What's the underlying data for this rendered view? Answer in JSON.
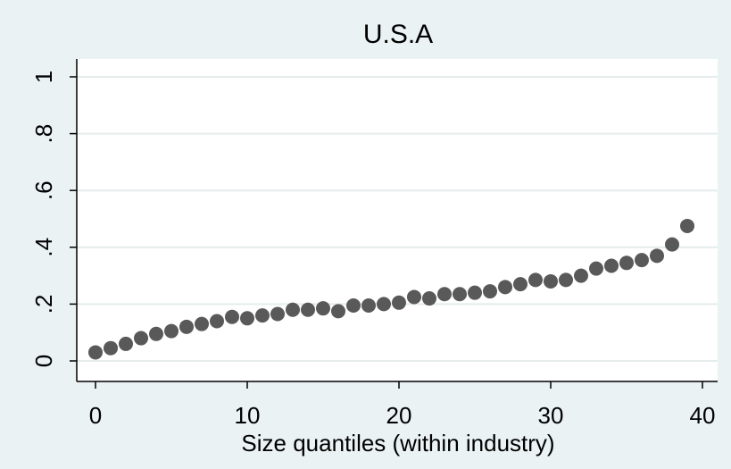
{
  "chart_data": {
    "type": "scatter",
    "title": "U.S.A",
    "xlabel": "Size quantiles (within industry)",
    "ylabel": "",
    "xlim": [
      0,
      40
    ],
    "ylim": [
      0,
      1
    ],
    "x_ticks": [
      "0",
      "10",
      "20",
      "30",
      "40"
    ],
    "y_ticks": [
      "0",
      ".2",
      ".4",
      ".6",
      ".8",
      "1"
    ],
    "grid": true,
    "legend": "none",
    "x": [
      0,
      1,
      2,
      3,
      4,
      5,
      6,
      7,
      8,
      9,
      10,
      11,
      12,
      13,
      14,
      15,
      16,
      17,
      18,
      19,
      20,
      21,
      22,
      23,
      24,
      25,
      26,
      27,
      28,
      29,
      30,
      31,
      32,
      33,
      34,
      35,
      36,
      37,
      38,
      39
    ],
    "y": [
      0.03,
      0.045,
      0.06,
      0.08,
      0.095,
      0.105,
      0.12,
      0.13,
      0.14,
      0.155,
      0.15,
      0.16,
      0.165,
      0.18,
      0.18,
      0.185,
      0.175,
      0.195,
      0.195,
      0.2,
      0.205,
      0.225,
      0.22,
      0.235,
      0.235,
      0.24,
      0.245,
      0.26,
      0.27,
      0.285,
      0.28,
      0.285,
      0.3,
      0.325,
      0.335,
      0.345,
      0.355,
      0.37,
      0.41,
      0.475
    ],
    "colors": {
      "marker": "#595959",
      "plot_bg": "#ffffff",
      "outer_bg": "#eaf2f3",
      "grid": "#e4ecec",
      "axis": "#000000"
    }
  }
}
